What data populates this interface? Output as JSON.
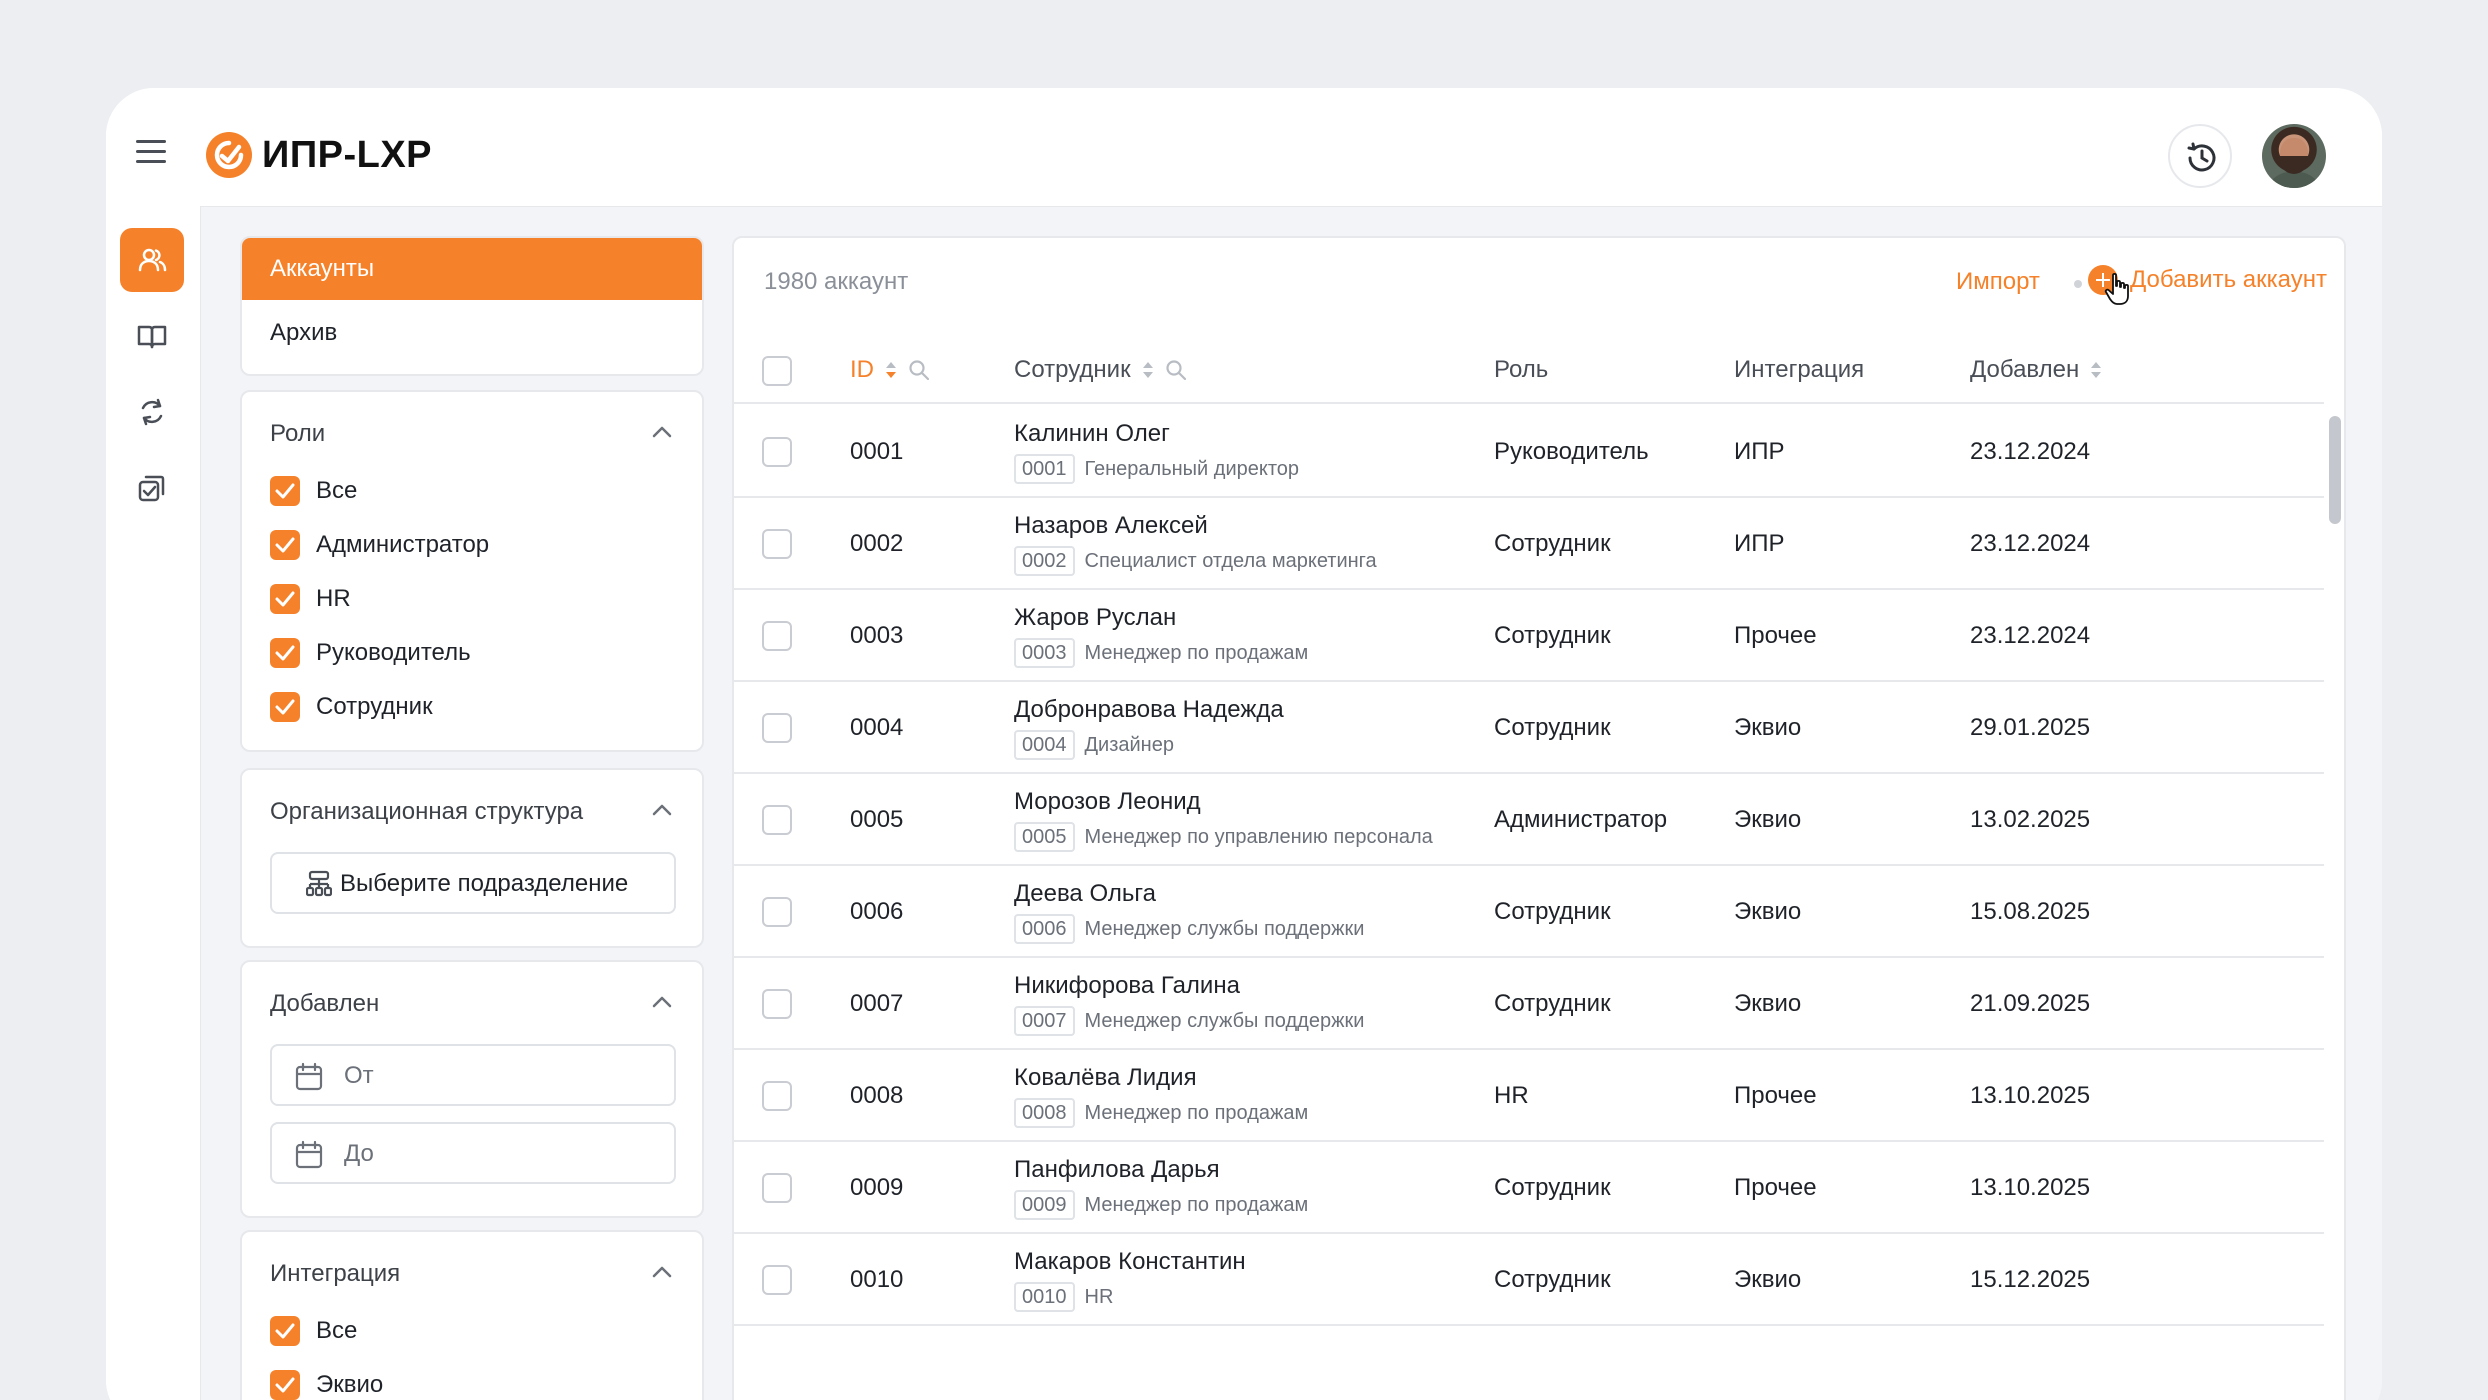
{
  "app": {
    "brand": "ИПР-LXP"
  },
  "colors": {
    "accent": "#f5822a",
    "background": "#eceef2"
  },
  "topbar": {
    "menu_icon": "hamburger-icon",
    "logo_icon": "brand-logo-icon",
    "history_icon": "clock-history-icon",
    "avatar": "user-avatar"
  },
  "rail": {
    "items": [
      {
        "icon": "users-icon",
        "active": true
      },
      {
        "icon": "book-icon",
        "active": false
      },
      {
        "icon": "refresh-cycle-icon",
        "active": false
      },
      {
        "icon": "tasks-check-icon",
        "active": false
      }
    ]
  },
  "sidebar": {
    "tabs": [
      {
        "label": "Аккаунты",
        "active": true
      },
      {
        "label": "Архив",
        "active": false
      }
    ],
    "roles": {
      "title": "Роли",
      "options": [
        {
          "label": "Все",
          "checked": true
        },
        {
          "label": "Администратор",
          "checked": true
        },
        {
          "label": "HR",
          "checked": true
        },
        {
          "label": "Руководитель",
          "checked": true
        },
        {
          "label": "Сотрудник",
          "checked": true
        }
      ]
    },
    "org": {
      "title": "Организационная структура",
      "button_label": "Выберите подразделение"
    },
    "added": {
      "title": "Добавлен",
      "from_placeholder": "От",
      "to_placeholder": "До"
    },
    "integration": {
      "title": "Интеграция",
      "options": [
        {
          "label": "Все",
          "checked": true
        },
        {
          "label": "Эквио",
          "checked": true
        }
      ]
    }
  },
  "main": {
    "count_label": "1980 аккаунт",
    "import_label": "Импорт",
    "add_label": "Добавить аккаунт",
    "columns": {
      "id": "ID",
      "employee": "Сотрудник",
      "role": "Роль",
      "integration": "Интеграция",
      "added": "Добавлен"
    },
    "rows": [
      {
        "id": "0001",
        "name": "Калинин Олег",
        "sub_id": "0001",
        "position": "Генеральный директор",
        "role": "Руководитель",
        "integration": "ИПР",
        "added": "23.12.2024"
      },
      {
        "id": "0002",
        "name": "Назаров Алексей",
        "sub_id": "0002",
        "position": "Специалист отдела маркетинга",
        "role": "Сотрудник",
        "integration": "ИПР",
        "added": "23.12.2024"
      },
      {
        "id": "0003",
        "name": "Жаров Руслан",
        "sub_id": "0003",
        "position": "Менеджер по продажам",
        "role": "Сотрудник",
        "integration": "Прочее",
        "added": "23.12.2024"
      },
      {
        "id": "0004",
        "name": "Добронравова Надежда",
        "sub_id": "0004",
        "position": "Дизайнер",
        "role": "Сотрудник",
        "integration": "Эквио",
        "added": "29.01.2025"
      },
      {
        "id": "0005",
        "name": "Морозов Леонид",
        "sub_id": "0005",
        "position": "Менеджер по управлению персонала",
        "role": "Администратор",
        "integration": "Эквио",
        "added": "13.02.2025"
      },
      {
        "id": "0006",
        "name": "Деева Ольга",
        "sub_id": "0006",
        "position": "Менеджер службы поддержки",
        "role": "Сотрудник",
        "integration": "Эквио",
        "added": "15.08.2025"
      },
      {
        "id": "0007",
        "name": "Никифорова Галина",
        "sub_id": "0007",
        "position": "Менеджер службы поддержки",
        "role": "Сотрудник",
        "integration": "Эквио",
        "added": "21.09.2025"
      },
      {
        "id": "0008",
        "name": "Ковалёва Лидия",
        "sub_id": "0008",
        "position": "Менеджер по продажам",
        "role": "HR",
        "integration": "Прочее",
        "added": "13.10.2025"
      },
      {
        "id": "0009",
        "name": "Панфилова Дарья",
        "sub_id": "0009",
        "position": "Менеджер по продажам",
        "role": "Сотрудник",
        "integration": "Прочее",
        "added": "13.10.2025"
      },
      {
        "id": "0010",
        "name": "Макаров Константин",
        "sub_id": "0010",
        "position": "HR",
        "role": "Сотрудник",
        "integration": "Эквио",
        "added": "15.12.2025"
      }
    ]
  }
}
